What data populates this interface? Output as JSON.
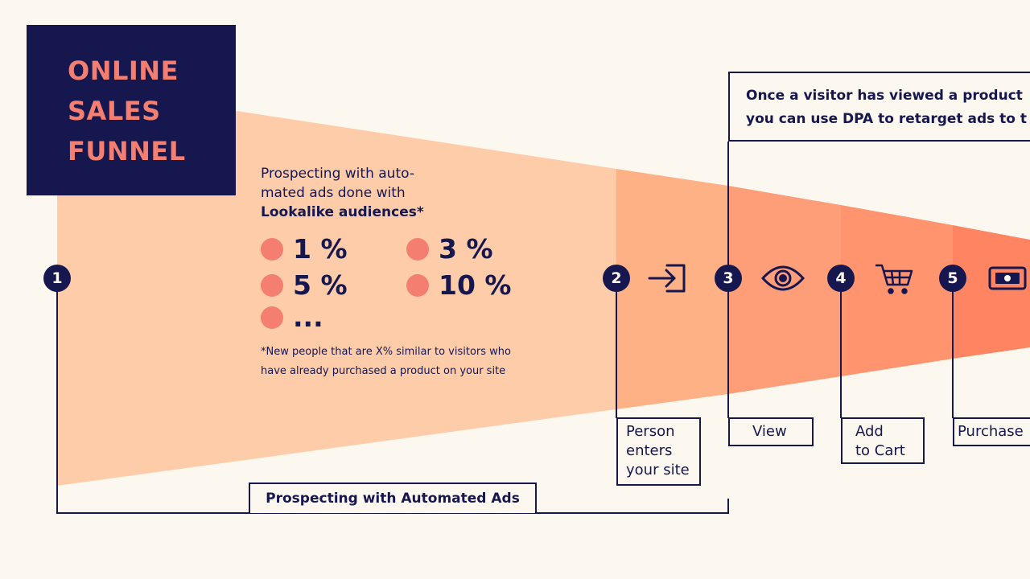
{
  "title": {
    "line1": "ONLINE",
    "line2": "SALES",
    "line3": "FUNNEL"
  },
  "prospecting": {
    "line1": "Prospecting with auto-",
    "line2": "mated ads done with",
    "line3": "Lookalike audiences*",
    "percentages": [
      "1 %",
      "3 %",
      "5 %",
      "10 %",
      "..."
    ],
    "footnote_line1": "*New people that are X% similar to visitors who",
    "footnote_line2": "have already purchased a product on your site"
  },
  "steps": [
    {
      "number": "1",
      "icon": "none"
    },
    {
      "number": "2",
      "icon": "sign-in-icon",
      "label_lines": [
        "Person",
        "enters",
        "your site"
      ]
    },
    {
      "number": "3",
      "icon": "eye-icon",
      "label_lines": [
        "View"
      ]
    },
    {
      "number": "4",
      "icon": "cart-icon",
      "label_lines": [
        "Add",
        "to Cart"
      ]
    },
    {
      "number": "5",
      "icon": "cash-icon",
      "label_lines": [
        "Purchase"
      ]
    }
  ],
  "retarget_note": {
    "line1": "Once a visitor has viewed a product",
    "line2": "you can use DPA to retarget ads to t"
  },
  "bottom_label": "Prospecting with Automated Ads",
  "colors": {
    "background": "#fcf8ef",
    "navy": "#16174f",
    "coral": "#f47e70",
    "funnel_light": "#fecca8",
    "funnel_mid": "#fdb185",
    "funnel_deep": "#ff8d6c"
  }
}
